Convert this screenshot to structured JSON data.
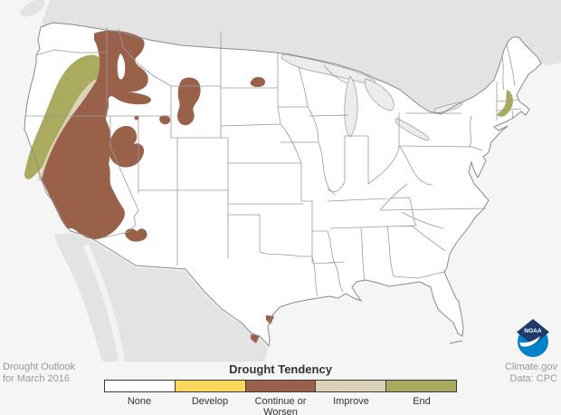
{
  "footer_left": {
    "line1": "Drought Outlook",
    "line2": "for March 2016"
  },
  "footer_right": {
    "line1": "Climate.gov",
    "line2": "Data: CPC"
  },
  "legend": {
    "title": "Drought Tendency",
    "items": [
      {
        "label": "None",
        "color": "#FFFFFF"
      },
      {
        "label": "Develop",
        "color": "#F8D75C"
      },
      {
        "label": "Continue or Worsen",
        "color": "#99604A"
      },
      {
        "label": "Improve",
        "color": "#DBD2B8"
      },
      {
        "label": "End",
        "color": "#ABAB60"
      }
    ]
  },
  "logo": {
    "text": "NOAA"
  },
  "map_data": {
    "type": "choropleth-map",
    "region": "Contiguous United States",
    "background_colors": {
      "ocean": "#F5F5F5",
      "foreign_land": "#E3E3E3",
      "us_land": "#FFFFFF",
      "lakes": "#ECECEC",
      "state_border": "#999999"
    },
    "categories": [
      "None",
      "Develop",
      "Continue or Worsen",
      "Improve",
      "End"
    ],
    "depicted_regions": [
      {
        "category": "Continue or Worsen",
        "color": "#99604A",
        "areas": [
          "most of California and all of Nevada",
          "Idaho panhandle and western Montana",
          "central Utah",
          "northwestern Wyoming / southern Montana",
          "small area in central North Dakota",
          "patches of central and western Arizona",
          "two small spots on the south Texas coast"
        ]
      },
      {
        "category": "Improve",
        "color": "#DBD2B8",
        "areas": [
          "band from central Oregon southwest into northern California"
        ]
      },
      {
        "category": "End",
        "color": "#ABAB60",
        "areas": [
          "band across north-central Oregon down to the northern California coast",
          "southern New England from central Massachusetts into southern New Hampshire"
        ]
      },
      {
        "category": "Develop",
        "color": "#F8D75C",
        "areas": []
      },
      {
        "category": "None",
        "color": "#FFFFFF",
        "areas": [
          "remainder of the contiguous United States"
        ]
      }
    ]
  }
}
